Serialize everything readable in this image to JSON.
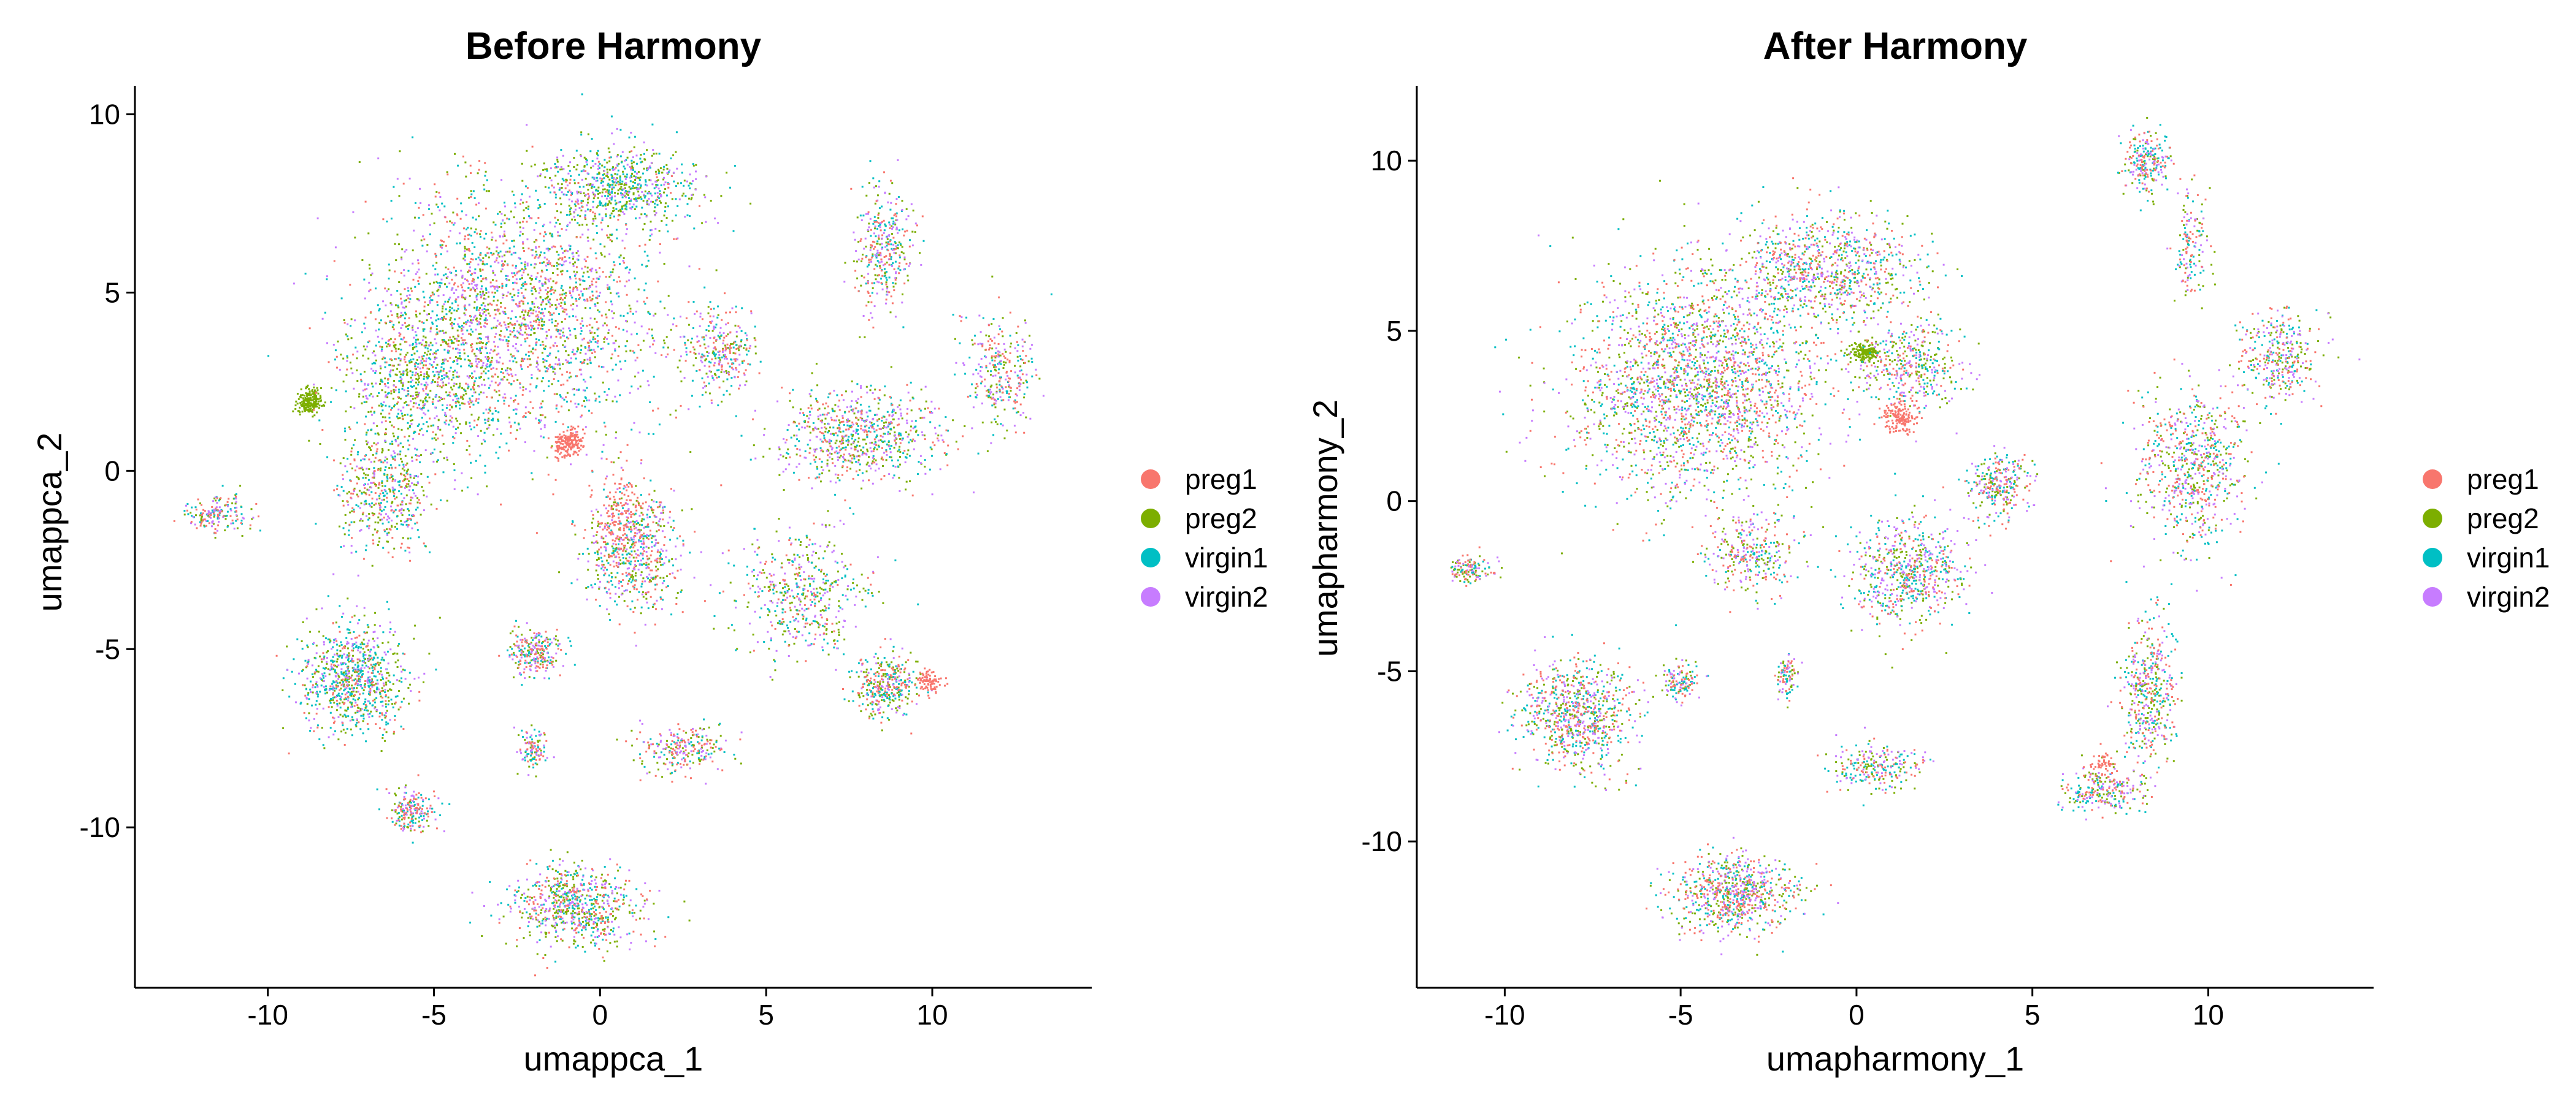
{
  "colors": {
    "preg1": "#F8766D",
    "preg2": "#7CAE00",
    "virgin1": "#00BFC4",
    "virgin2": "#C77CFF",
    "axis": "#000000",
    "background": "#ffffff"
  },
  "legend": {
    "placement": "right",
    "entries": [
      "preg1",
      "preg2",
      "virgin1",
      "virgin2"
    ]
  },
  "chart_data": [
    {
      "type": "scatter",
      "title": "Before Harmony",
      "xlabel": "umappca_1",
      "ylabel": "umappca_2",
      "xlim": [
        -14.0,
        14.8
      ],
      "ylim": [
        -14.5,
        10.8
      ],
      "xticks": [
        -10,
        -5,
        0,
        5,
        10
      ],
      "xtick_labels": [
        "-10",
        "-5",
        "0",
        "5",
        "10"
      ],
      "yticks": [
        -10,
        -5,
        0,
        5,
        10
      ],
      "ytick_labels": [
        "-10",
        "-5",
        "0",
        "5",
        "10"
      ],
      "grid": false,
      "series": [
        {
          "name": "preg1"
        },
        {
          "name": "preg2"
        },
        {
          "name": "virgin1"
        },
        {
          "name": "virgin2"
        }
      ],
      "clusters": [
        {
          "cx": -2.5,
          "cy": 4.5,
          "sx": 3.8,
          "sy": 3.2,
          "n": 2300,
          "mix": [
            0.25,
            0.25,
            0.25,
            0.25
          ]
        },
        {
          "cx": -5.5,
          "cy": 2.5,
          "sx": 2.2,
          "sy": 1.8,
          "n": 700,
          "mix": [
            0.1,
            0.45,
            0.25,
            0.2
          ]
        },
        {
          "cx": 0.5,
          "cy": 8.0,
          "sx": 2.0,
          "sy": 1.0,
          "n": 650,
          "mix": [
            0.05,
            0.4,
            0.3,
            0.25
          ]
        },
        {
          "cx": -6.5,
          "cy": -0.5,
          "sx": 1.3,
          "sy": 1.5,
          "n": 500,
          "mix": [
            0.2,
            0.35,
            0.25,
            0.2
          ]
        },
        {
          "cx": -11.5,
          "cy": -1.2,
          "sx": 1.0,
          "sy": 0.5,
          "n": 180,
          "mix": [
            0.25,
            0.25,
            0.25,
            0.25
          ]
        },
        {
          "cx": -8.8,
          "cy": 2.0,
          "sx": 0.35,
          "sy": 0.3,
          "n": 200,
          "mix": [
            0.0,
            1.0,
            0.0,
            0.0
          ]
        },
        {
          "cx": -1.0,
          "cy": 0.8,
          "sx": 0.4,
          "sy": 0.35,
          "n": 200,
          "mix": [
            1.0,
            0.0,
            0.0,
            0.0
          ]
        },
        {
          "cx": 0.5,
          "cy": -1.0,
          "sx": 0.6,
          "sy": 1.2,
          "n": 120,
          "mix": [
            1.0,
            0.0,
            0.0,
            0.0
          ]
        },
        {
          "cx": 1.0,
          "cy": -2.2,
          "sx": 1.3,
          "sy": 1.6,
          "n": 650,
          "mix": [
            0.25,
            0.25,
            0.25,
            0.25
          ]
        },
        {
          "cx": 3.5,
          "cy": 3.3,
          "sx": 1.0,
          "sy": 1.1,
          "n": 300,
          "mix": [
            0.25,
            0.25,
            0.25,
            0.25
          ]
        },
        {
          "cx": 8.5,
          "cy": 6.2,
          "sx": 0.8,
          "sy": 1.5,
          "n": 350,
          "mix": [
            0.25,
            0.25,
            0.25,
            0.25
          ]
        },
        {
          "cx": 7.8,
          "cy": 1.0,
          "sx": 2.2,
          "sy": 1.2,
          "n": 750,
          "mix": [
            0.2,
            0.3,
            0.25,
            0.25
          ]
        },
        {
          "cx": 12.0,
          "cy": 2.8,
          "sx": 1.0,
          "sy": 1.5,
          "n": 300,
          "mix": [
            0.25,
            0.25,
            0.25,
            0.25
          ]
        },
        {
          "cx": 6.0,
          "cy": -3.5,
          "sx": 1.8,
          "sy": 1.6,
          "n": 500,
          "mix": [
            0.2,
            0.3,
            0.25,
            0.25
          ]
        },
        {
          "cx": 8.6,
          "cy": -6.0,
          "sx": 0.9,
          "sy": 0.8,
          "n": 350,
          "mix": [
            0.25,
            0.3,
            0.25,
            0.2
          ]
        },
        {
          "cx": 9.9,
          "cy": -5.9,
          "sx": 0.35,
          "sy": 0.3,
          "n": 90,
          "mix": [
            1.0,
            0.0,
            0.0,
            0.0
          ]
        },
        {
          "cx": -7.5,
          "cy": -5.8,
          "sx": 1.5,
          "sy": 1.4,
          "n": 850,
          "mix": [
            0.15,
            0.3,
            0.35,
            0.2
          ]
        },
        {
          "cx": -5.7,
          "cy": -9.5,
          "sx": 0.6,
          "sy": 0.6,
          "n": 200,
          "mix": [
            0.25,
            0.25,
            0.25,
            0.25
          ]
        },
        {
          "cx": -2.0,
          "cy": -5.1,
          "sx": 0.8,
          "sy": 0.6,
          "n": 250,
          "mix": [
            0.25,
            0.25,
            0.25,
            0.25
          ]
        },
        {
          "cx": -2.1,
          "cy": -7.8,
          "sx": 0.4,
          "sy": 0.5,
          "n": 110,
          "mix": [
            0.25,
            0.25,
            0.25,
            0.25
          ]
        },
        {
          "cx": 2.5,
          "cy": -7.8,
          "sx": 1.3,
          "sy": 0.6,
          "n": 250,
          "mix": [
            0.25,
            0.25,
            0.25,
            0.25
          ]
        },
        {
          "cx": -0.8,
          "cy": -12.2,
          "sx": 1.8,
          "sy": 1.0,
          "n": 750,
          "mix": [
            0.2,
            0.3,
            0.25,
            0.25
          ]
        }
      ]
    },
    {
      "type": "scatter",
      "title": "After Harmony",
      "xlabel": "umapharmony_1",
      "ylabel": "umapharmony_2",
      "xlim": [
        -12.5,
        14.7
      ],
      "ylim": [
        -14.3,
        12.2
      ],
      "xticks": [
        -10,
        -5,
        0,
        5,
        10
      ],
      "xtick_labels": [
        "-10",
        "-5",
        "0",
        "5",
        "10"
      ],
      "yticks": [
        -10,
        -5,
        0,
        5,
        10
      ],
      "ytick_labels": [
        "-10",
        "-5",
        "0",
        "5",
        "10"
      ],
      "grid": false,
      "series": [
        {
          "name": "preg1"
        },
        {
          "name": "preg2"
        },
        {
          "name": "virgin1"
        },
        {
          "name": "virgin2"
        }
      ],
      "clusters": [
        {
          "cx": -4.5,
          "cy": 3.5,
          "sx": 3.2,
          "sy": 3.0,
          "n": 2300,
          "mix": [
            0.25,
            0.25,
            0.25,
            0.25
          ]
        },
        {
          "cx": -1.0,
          "cy": 6.8,
          "sx": 2.4,
          "sy": 1.5,
          "n": 900,
          "mix": [
            0.25,
            0.25,
            0.25,
            0.25
          ]
        },
        {
          "cx": 0.2,
          "cy": 4.4,
          "sx": 0.35,
          "sy": 0.25,
          "n": 150,
          "mix": [
            0.0,
            1.0,
            0.0,
            0.0
          ]
        },
        {
          "cx": 1.2,
          "cy": 2.5,
          "sx": 0.45,
          "sy": 0.4,
          "n": 160,
          "mix": [
            1.0,
            0.0,
            0.0,
            0.0
          ]
        },
        {
          "cx": 1.5,
          "cy": 4.0,
          "sx": 1.4,
          "sy": 1.2,
          "n": 400,
          "mix": [
            0.2,
            0.3,
            0.25,
            0.25
          ]
        },
        {
          "cx": -11.0,
          "cy": -2.0,
          "sx": 0.6,
          "sy": 0.4,
          "n": 130,
          "mix": [
            0.25,
            0.25,
            0.25,
            0.25
          ]
        },
        {
          "cx": -3.0,
          "cy": -1.5,
          "sx": 1.2,
          "sy": 1.0,
          "n": 300,
          "mix": [
            0.25,
            0.25,
            0.25,
            0.25
          ]
        },
        {
          "cx": 1.5,
          "cy": -2.0,
          "sx": 1.5,
          "sy": 1.4,
          "n": 650,
          "mix": [
            0.25,
            0.25,
            0.25,
            0.25
          ]
        },
        {
          "cx": 4.0,
          "cy": 0.5,
          "sx": 0.8,
          "sy": 0.8,
          "n": 280,
          "mix": [
            0.25,
            0.25,
            0.25,
            0.25
          ]
        },
        {
          "cx": 8.2,
          "cy": 10.0,
          "sx": 0.6,
          "sy": 0.8,
          "n": 230,
          "mix": [
            0.25,
            0.25,
            0.25,
            0.25
          ]
        },
        {
          "cx": 9.5,
          "cy": 7.5,
          "sx": 0.5,
          "sy": 1.5,
          "n": 150,
          "mix": [
            0.25,
            0.25,
            0.25,
            0.25
          ]
        },
        {
          "cx": 12.0,
          "cy": 4.3,
          "sx": 1.0,
          "sy": 1.2,
          "n": 350,
          "mix": [
            0.25,
            0.25,
            0.25,
            0.25
          ]
        },
        {
          "cx": 9.5,
          "cy": 1.0,
          "sx": 1.3,
          "sy": 2.2,
          "n": 700,
          "mix": [
            0.25,
            0.25,
            0.25,
            0.25
          ]
        },
        {
          "cx": 8.3,
          "cy": -5.5,
          "sx": 0.7,
          "sy": 1.8,
          "n": 450,
          "mix": [
            0.25,
            0.25,
            0.25,
            0.25
          ]
        },
        {
          "cx": 7.0,
          "cy": -8.5,
          "sx": 1.0,
          "sy": 0.6,
          "n": 250,
          "mix": [
            0.25,
            0.25,
            0.25,
            0.25
          ]
        },
        {
          "cx": 7.0,
          "cy": -7.7,
          "sx": 0.35,
          "sy": 0.35,
          "n": 50,
          "mix": [
            1.0,
            0.0,
            0.0,
            0.0
          ]
        },
        {
          "cx": -8.0,
          "cy": -6.2,
          "sx": 1.4,
          "sy": 1.4,
          "n": 800,
          "mix": [
            0.25,
            0.25,
            0.25,
            0.25
          ]
        },
        {
          "cx": -5.0,
          "cy": -5.3,
          "sx": 0.5,
          "sy": 0.5,
          "n": 130,
          "mix": [
            0.25,
            0.25,
            0.25,
            0.25
          ]
        },
        {
          "cx": -2.0,
          "cy": -5.1,
          "sx": 0.3,
          "sy": 0.6,
          "n": 90,
          "mix": [
            0.25,
            0.25,
            0.25,
            0.25
          ]
        },
        {
          "cx": 0.5,
          "cy": -7.8,
          "sx": 1.2,
          "sy": 0.6,
          "n": 250,
          "mix": [
            0.25,
            0.25,
            0.25,
            0.25
          ]
        },
        {
          "cx": -3.5,
          "cy": -11.5,
          "sx": 1.6,
          "sy": 1.0,
          "n": 750,
          "mix": [
            0.25,
            0.25,
            0.25,
            0.25
          ]
        }
      ]
    }
  ]
}
